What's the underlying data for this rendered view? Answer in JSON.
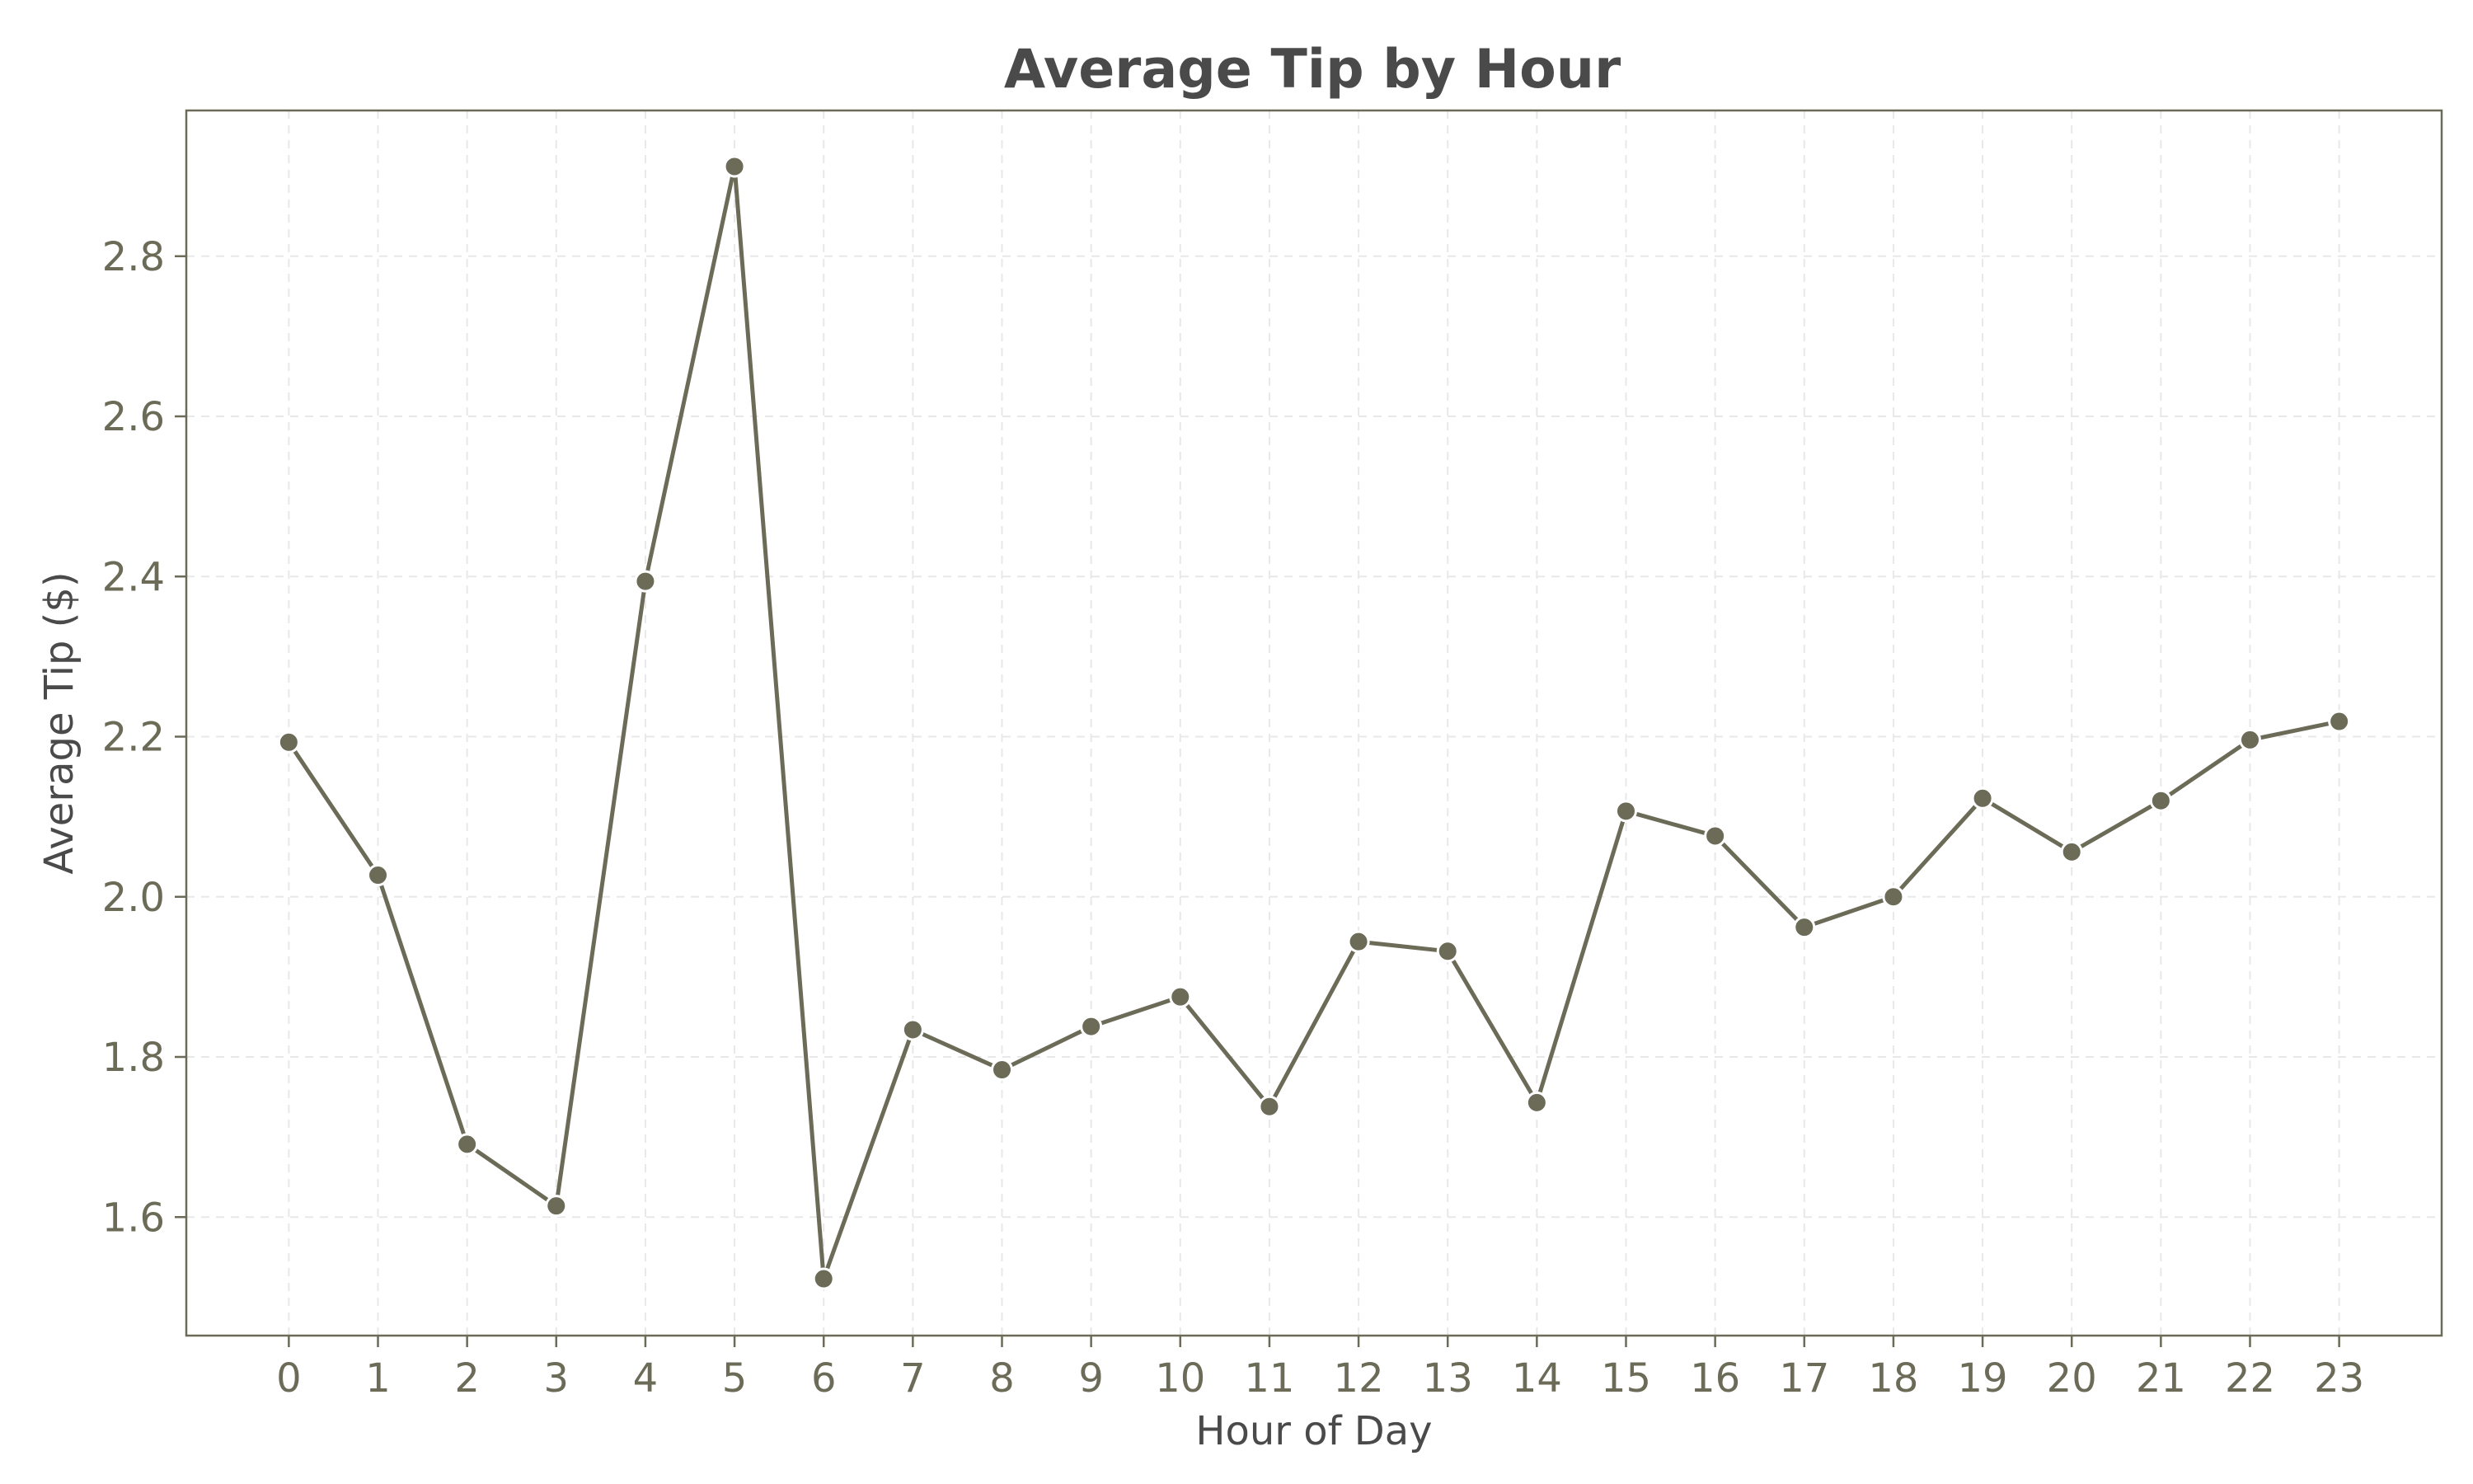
{
  "chart_data": {
    "type": "line",
    "title": "Average Tip by Hour",
    "xlabel": "Hour of Day",
    "ylabel": "Average Tip ($)",
    "x": [
      0,
      1,
      2,
      3,
      4,
      5,
      6,
      7,
      8,
      9,
      10,
      11,
      12,
      13,
      14,
      15,
      16,
      17,
      18,
      19,
      20,
      21,
      22,
      23
    ],
    "x_tick_labels": [
      "0",
      "1",
      "2",
      "3",
      "4",
      "5",
      "6",
      "7",
      "8",
      "9",
      "10",
      "11",
      "12",
      "13",
      "14",
      "15",
      "16",
      "17",
      "18",
      "19",
      "20",
      "21",
      "22",
      "23"
    ],
    "series": [
      {
        "values": [
          2.193,
          2.027,
          1.691,
          1.614,
          2.394,
          2.912,
          1.523,
          1.834,
          1.784,
          1.838,
          1.875,
          1.738,
          1.944,
          1.932,
          1.743,
          2.107,
          2.076,
          1.962,
          2.0,
          2.123,
          2.056,
          2.12,
          2.196,
          2.219
        ]
      }
    ],
    "y_ticks": [
      1.6,
      1.8,
      2.0,
      2.2,
      2.4,
      2.6,
      2.8
    ],
    "y_tick_labels": [
      "1.6",
      "1.8",
      "2.0",
      "2.2",
      "2.4",
      "2.6",
      "2.8"
    ],
    "xlim": [
      -1.15,
      24.15
    ],
    "ylim": [
      1.452,
      2.982
    ],
    "grid": true,
    "legend": "none",
    "colors": {
      "line": "#6b6b58",
      "marker_fill": "#6b6b58",
      "marker_edge": "#ffffff",
      "axes_edge": "#6b6b58",
      "grid": "#e8e8e8",
      "tick_label": "#6b6b58",
      "title": "#4a4a4a",
      "axis_label": "#4a4a4a"
    }
  }
}
